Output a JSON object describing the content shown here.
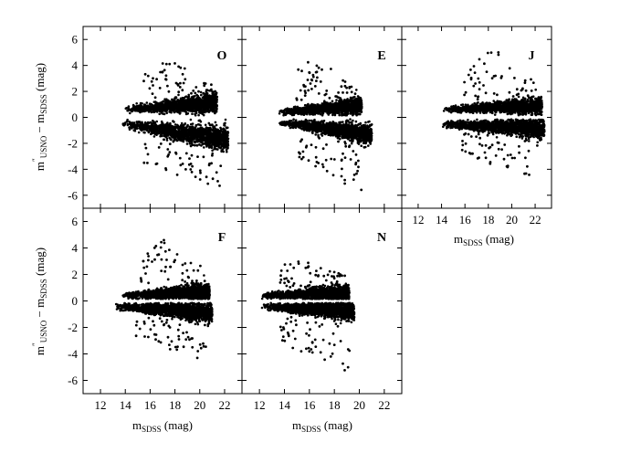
{
  "chart_data": {
    "type": "scatter",
    "description_units": "x = SDSS magnitude (mag); y = USNO minus SDSS magnitude (mag)",
    "shared_axes": {
      "x_ticks": [
        12,
        14,
        16,
        18,
        20,
        22
      ],
      "y_ticks": [
        -6,
        -4,
        -2,
        0,
        2,
        4,
        6
      ],
      "xlim": [
        10.6,
        23.4
      ],
      "ylim": [
        -7.0,
        7.0
      ]
    },
    "axis_labels": {
      "x": {
        "main": "m",
        "sub": "SDSS",
        "suffix": " (mag)"
      },
      "y": {
        "main": "m",
        "sup": "″",
        "sub1": "USNO",
        "mid": " − m",
        "sub2": "SDSS",
        "suffix": " (mag)"
      }
    },
    "panels": [
      {
        "label": "O",
        "position": "top-1",
        "upper_band": {
          "x_range": [
            14.0,
            21.4
          ],
          "center_y": [
            0.6,
            1.1
          ],
          "spread": 0.35,
          "outlier_max_y": 4.3,
          "peak_x": 17.5
        },
        "lower_band": {
          "x_range": [
            13.8,
            22.3
          ],
          "center_y": [
            -0.5,
            -1.7
          ],
          "spread": 0.45,
          "outlier_min_y": -5.5
        }
      },
      {
        "label": "E",
        "position": "top-2",
        "upper_band": {
          "x_range": [
            13.6,
            20.2
          ],
          "center_y": [
            0.4,
            0.9
          ],
          "spread": 0.3,
          "outlier_max_y": 4.4,
          "peak_x": 16.5
        },
        "lower_band": {
          "x_range": [
            13.6,
            21.0
          ],
          "center_y": [
            -0.4,
            -1.3
          ],
          "spread": 0.35,
          "outlier_min_y": -5.8
        }
      },
      {
        "label": "J",
        "position": "top-3",
        "upper_band": {
          "x_range": [
            14.2,
            22.6
          ],
          "center_y": [
            0.6,
            0.9
          ],
          "spread": 0.3,
          "outlier_max_y": 5.2,
          "peak_x": 18.5
        },
        "lower_band": {
          "x_range": [
            14.0,
            22.8
          ],
          "center_y": [
            -0.5,
            -0.9
          ],
          "spread": 0.35,
          "outlier_min_y": -4.8
        }
      },
      {
        "label": "F",
        "position": "bottom-1",
        "upper_band": {
          "x_range": [
            13.8,
            20.8
          ],
          "center_y": [
            0.4,
            0.7
          ],
          "spread": 0.3,
          "outlier_max_y": 4.6,
          "peak_x": 17.0
        },
        "lower_band": {
          "x_range": [
            13.2,
            21.0
          ],
          "center_y": [
            -0.4,
            -0.9
          ],
          "spread": 0.35,
          "outlier_min_y": -4.5
        }
      },
      {
        "label": "N",
        "position": "bottom-2",
        "upper_band": {
          "x_range": [
            12.2,
            19.2
          ],
          "center_y": [
            0.4,
            0.6
          ],
          "spread": 0.3,
          "outlier_max_y": 3.3,
          "peak_x": 15.5
        },
        "lower_band": {
          "x_range": [
            12.2,
            19.6
          ],
          "center_y": [
            -0.4,
            -0.8
          ],
          "spread": 0.35,
          "outlier_min_y": -5.4
        }
      }
    ]
  }
}
